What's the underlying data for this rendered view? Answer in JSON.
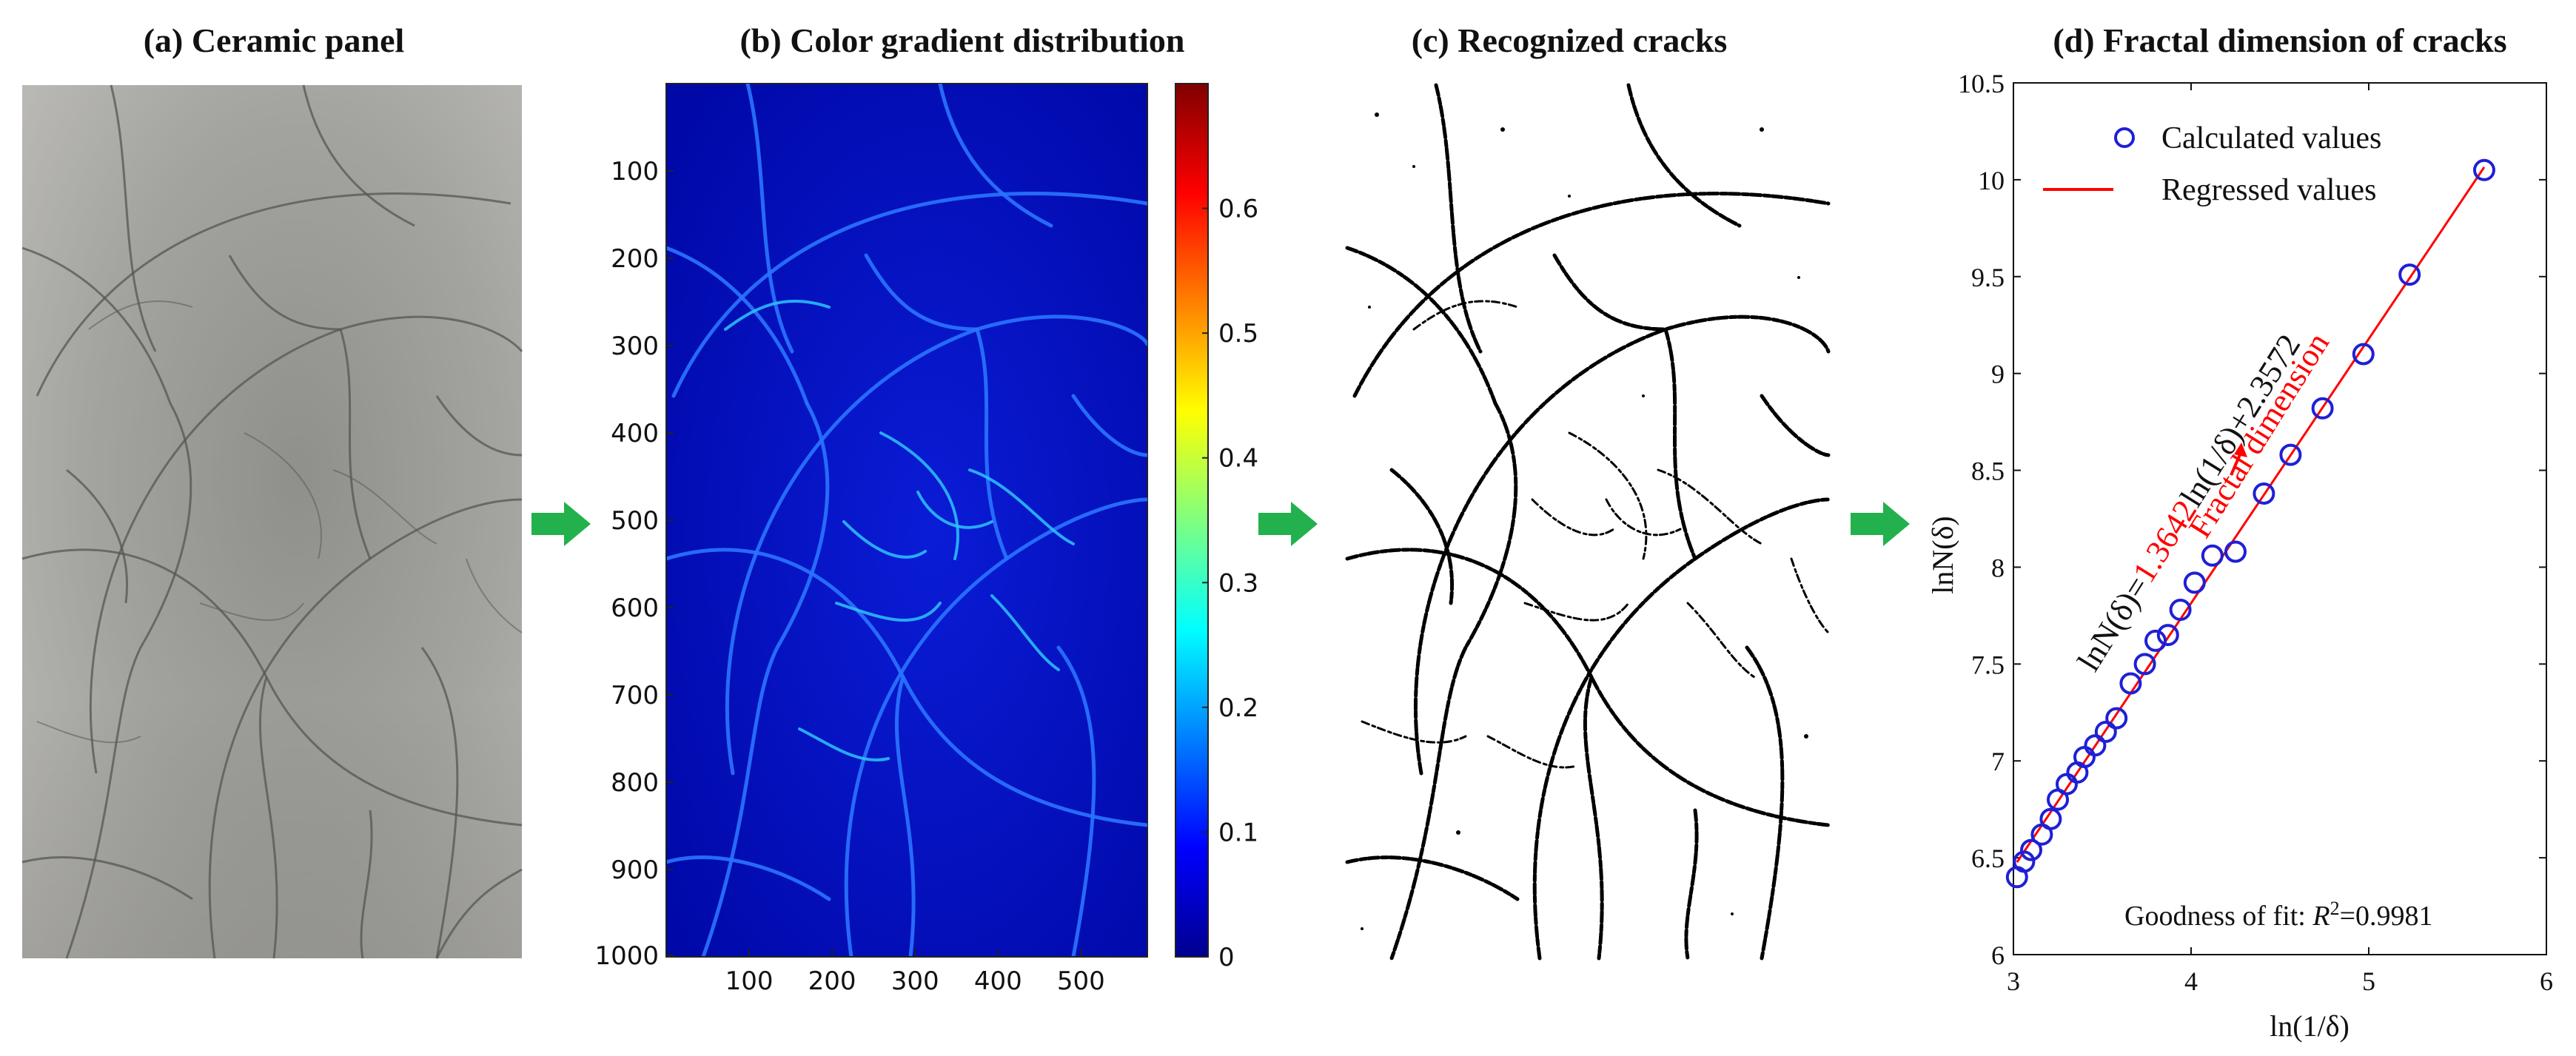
{
  "panels": {
    "a": {
      "title": "(a) Ceramic panel"
    },
    "b": {
      "title": "(b) Color gradient distribution"
    },
    "c": {
      "title": "(c) Recognized cracks"
    },
    "d": {
      "title": "(d) Fractal dimension of cracks"
    }
  },
  "colors": {
    "arrow": "#22b14c",
    "regression": "#ff0000",
    "markers": "#1f1fd6"
  },
  "heatmap": {
    "x_ticks": [
      "100",
      "200",
      "300",
      "400",
      "500"
    ],
    "y_ticks": [
      "100",
      "200",
      "300",
      "400",
      "500",
      "600",
      "700",
      "800",
      "900",
      "1000"
    ],
    "colorbar_ticks": [
      "0",
      "0.1",
      "0.2",
      "0.3",
      "0.4",
      "0.5",
      "0.6"
    ]
  },
  "chart_data": {
    "type": "scatter",
    "title": "(d) Fractal dimension of cracks",
    "xlabel": "ln(1/δ)",
    "ylabel": "lnN(δ)",
    "xlim": [
      3,
      6
    ],
    "ylim": [
      6,
      10.5
    ],
    "x_ticks": [
      "3",
      "4",
      "5",
      "6"
    ],
    "y_ticks": [
      "6",
      "6.5",
      "7",
      "7.5",
      "8",
      "8.5",
      "9",
      "9.5",
      "10",
      "10.5"
    ],
    "legend": {
      "position": "top-left",
      "entries": [
        "Calculated values",
        "Regressed values"
      ]
    },
    "series": [
      {
        "name": "Calculated values",
        "kind": "points",
        "x": [
          3.02,
          3.06,
          3.1,
          3.16,
          3.21,
          3.25,
          3.3,
          3.36,
          3.4,
          3.46,
          3.52,
          3.58,
          3.66,
          3.74,
          3.8,
          3.87,
          3.94,
          4.02,
          4.12,
          4.25,
          4.41,
          4.56,
          4.74,
          4.97,
          5.23,
          5.65
        ],
        "y": [
          6.4,
          6.48,
          6.54,
          6.62,
          6.7,
          6.8,
          6.88,
          6.94,
          7.02,
          7.08,
          7.15,
          7.22,
          7.4,
          7.5,
          7.62,
          7.65,
          7.78,
          7.92,
          8.06,
          8.08,
          8.38,
          8.58,
          8.82,
          9.1,
          9.51,
          10.05
        ]
      },
      {
        "name": "Regressed values",
        "kind": "line",
        "slope": 1.3642,
        "intercept": 2.3572,
        "x_range": [
          3.02,
          5.65
        ]
      }
    ],
    "annotations": {
      "equation_prefix": "lnN(δ)=",
      "equation_slope": "1.3642",
      "equation_suffix": "ln(1/δ)+2.3572",
      "fractal_label": "Fractal dimension",
      "goodness_prefix": "Goodness of fit: ",
      "goodness_r": "R",
      "goodness_sup": "2",
      "goodness_value": "=0.9981"
    }
  }
}
